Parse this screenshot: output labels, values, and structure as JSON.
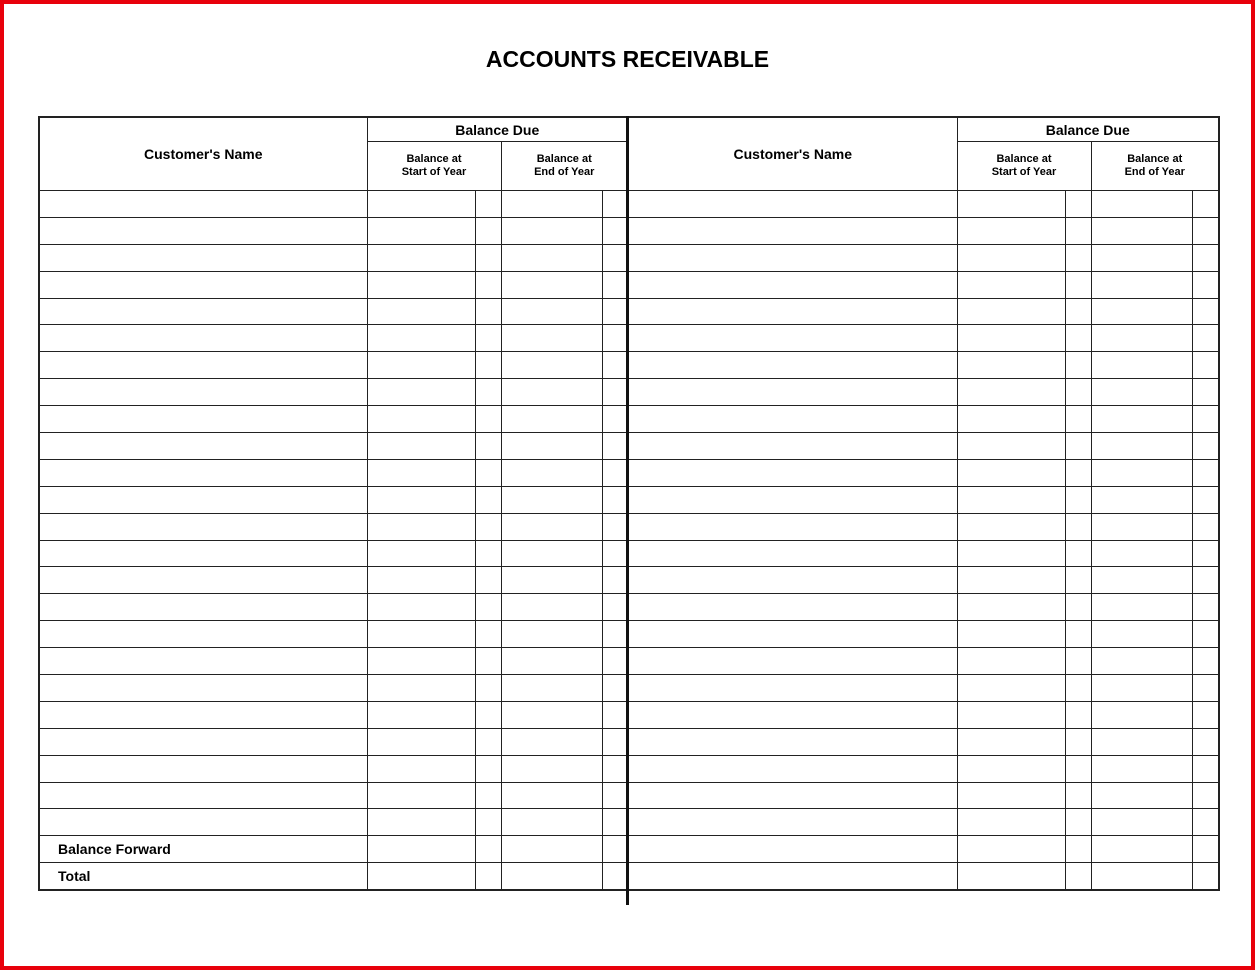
{
  "title": "ACCOUNTS RECEIVABLE",
  "header": {
    "customer_name": "Customer's Name",
    "balance_due": "Balance Due",
    "start_line1": "Balance at",
    "start_line2": "Start of Year",
    "end_line1": "Balance at",
    "end_line2": "End of Year"
  },
  "blank_rows": 24,
  "footer_rows": [
    "Balance Forward",
    "Total"
  ]
}
